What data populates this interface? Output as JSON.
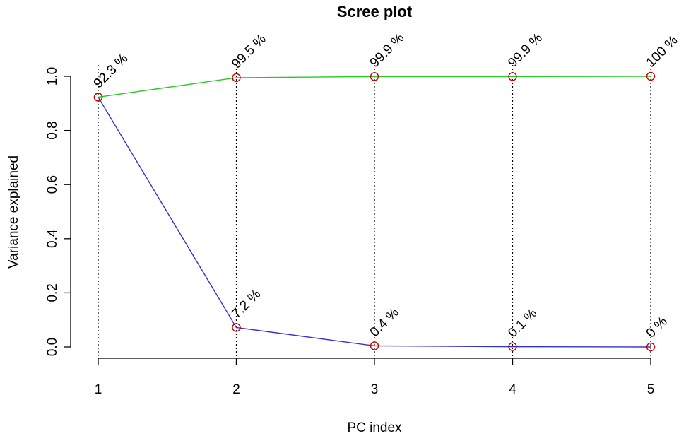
{
  "chart_data": {
    "type": "line",
    "title": "Scree plot",
    "xlabel": "PC index",
    "ylabel": "Variance explained",
    "x": [
      1,
      2,
      3,
      4,
      5
    ],
    "xlim": [
      1,
      5
    ],
    "ylim": [
      0,
      1
    ],
    "yticks": [
      "0.0",
      "0.2",
      "0.4",
      "0.6",
      "0.8",
      "1.0"
    ],
    "xticks": [
      "1",
      "2",
      "3",
      "4",
      "5"
    ],
    "grid": "vertical dotted lines at each PC",
    "legend": "none",
    "series": [
      {
        "role": "cumulative",
        "values": [
          0.923,
          0.995,
          0.999,
          0.999,
          1.0
        ],
        "labels": [
          "92.3 %",
          "99.5 %",
          "99.9 %",
          "99.9 %",
          "100 %"
        ],
        "color": "#22cc22"
      },
      {
        "role": "individual",
        "values": [
          0.923,
          0.072,
          0.004,
          0.001,
          0.0
        ],
        "labels": [
          "92.3 %",
          "7.2 %",
          "0.4 %",
          "0.1 %",
          "0 %"
        ],
        "color": "#3333cc"
      }
    ],
    "marker_color": "#cc0000"
  }
}
